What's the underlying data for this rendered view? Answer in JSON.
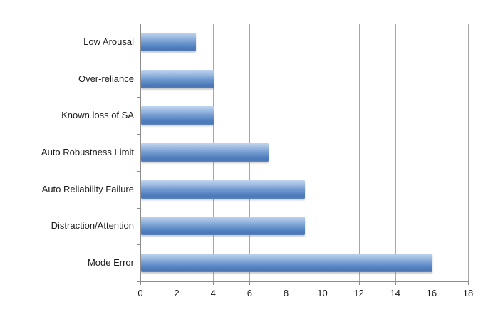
{
  "chart_data": {
    "type": "bar",
    "orientation": "horizontal",
    "title": "",
    "xlabel": "",
    "ylabel": "",
    "categories": [
      "Low Arousal",
      "Over-reliance",
      "Known loss of SA",
      "Auto Robustness Limit",
      "Auto Reliability Failure",
      "Distraction/Attention",
      "Mode Error"
    ],
    "values": [
      3,
      4,
      4,
      7,
      9,
      9,
      16
    ],
    "xlim": [
      0,
      18
    ],
    "xticks": [
      0,
      2,
      4,
      6,
      8,
      10,
      12,
      14,
      16,
      18
    ],
    "grid": "vertical",
    "legend": "none",
    "colors": {
      "bar_top": "#c0d4ee",
      "bar_main": "#4f81bd",
      "gridline": "#a6a6a6",
      "axis_line": "#8c8c8c",
      "label_text": "#1a1a1a",
      "background": "#ffffff"
    }
  }
}
